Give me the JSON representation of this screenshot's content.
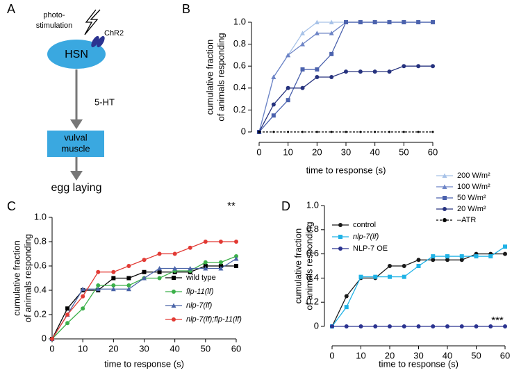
{
  "panels": [
    "A",
    "B",
    "C",
    "D"
  ],
  "diagram": {
    "stimulus": [
      "photo-",
      "stimulation"
    ],
    "channel": "ChR2",
    "neuron": "HSN",
    "transmitter": "5-HT",
    "target": [
      "vulval",
      "muscle"
    ],
    "output": "egg laying"
  },
  "chart_data": [
    {
      "type": "line",
      "xlabel": "time to response (s)",
      "ylabel": [
        "cumulative fraction",
        "of animals responding"
      ],
      "x": [
        0,
        5,
        10,
        15,
        20,
        25,
        30,
        35,
        40,
        45,
        50,
        55,
        60
      ],
      "xlim": [
        0,
        60
      ],
      "xticks": [
        0,
        10,
        20,
        30,
        40,
        50,
        60
      ],
      "ylim": [
        0,
        1
      ],
      "yticks": [
        0,
        0.2,
        0.4,
        0.6,
        0.8,
        {
          "value": 1,
          "label": "1.0"
        }
      ],
      "series": [
        {
          "name": "200 W/m²",
          "color": "#a7c2e8",
          "marker": "triangle",
          "values": [
            0,
            0.5,
            0.7,
            0.9,
            1,
            1,
            1,
            1,
            1,
            1,
            1,
            1,
            1
          ]
        },
        {
          "name": "100 W/m²",
          "color": "#6d84c6",
          "marker": "triangle",
          "values": [
            0,
            0.5,
            0.7,
            0.8,
            0.9,
            0.9,
            1,
            1,
            1,
            1,
            1,
            1,
            1
          ]
        },
        {
          "name": "50 W/m²",
          "color": "#4b62ad",
          "marker": "square",
          "values": [
            0,
            0.15,
            0.29,
            0.57,
            0.57,
            0.71,
            1,
            1,
            1,
            1,
            1,
            1,
            1
          ]
        },
        {
          "name": "20 W/m²",
          "color": "#26327e",
          "marker": "circle",
          "values": [
            0,
            0.25,
            0.4,
            0.4,
            0.5,
            0.5,
            0.55,
            0.55,
            0.55,
            0.55,
            0.6,
            0.6,
            0.6
          ]
        },
        {
          "name": "–ATR",
          "color": "#000000",
          "marker": "circle",
          "dash": true,
          "values": [
            0,
            0,
            0,
            0,
            0,
            0,
            0,
            0,
            0,
            0,
            0,
            0,
            0
          ]
        }
      ]
    },
    {
      "type": "line",
      "xlabel": "time to response (s)",
      "ylabel": [
        "cumulative fraction",
        "of animals responding"
      ],
      "annotation": "**",
      "x": [
        0,
        5,
        10,
        15,
        20,
        25,
        30,
        35,
        40,
        45,
        50,
        55,
        60
      ],
      "xlim": [
        0,
        60
      ],
      "xticks": [
        0,
        10,
        20,
        30,
        40,
        50,
        60
      ],
      "ylim": [
        0,
        1
      ],
      "yticks": [
        0,
        0.2,
        0.4,
        0.6,
        0.8,
        {
          "value": 1,
          "label": "1.0"
        }
      ],
      "series": [
        {
          "name": "wild type",
          "color": "#000000",
          "marker": "square",
          "values": [
            0,
            0.25,
            0.4,
            0.4,
            0.5,
            0.5,
            0.55,
            0.55,
            0.55,
            0.55,
            0.6,
            0.6,
            0.6
          ]
        },
        {
          "name": "flp-11(lf)",
          "color": "#3cb04a",
          "marker": "circle",
          "italic": true,
          "values": [
            0,
            0.13,
            0.25,
            0.44,
            0.44,
            0.44,
            0.5,
            0.5,
            0.56,
            0.56,
            0.63,
            0.63,
            0.68
          ]
        },
        {
          "name": "nlp-7(lf)",
          "color": "#4a64a8",
          "marker": "triangle",
          "italic": true,
          "values": [
            0,
            0.2,
            0.41,
            0.41,
            0.41,
            0.41,
            0.5,
            0.58,
            0.58,
            0.58,
            0.58,
            0.58,
            0.66
          ]
        },
        {
          "name": "nlp-7(lf);flp-11(lf)",
          "color": "#e23a34",
          "marker": "circle",
          "italic": true,
          "values": [
            0,
            0.2,
            0.35,
            0.55,
            0.55,
            0.6,
            0.65,
            0.7,
            0.7,
            0.75,
            0.8,
            0.8,
            0.8
          ]
        }
      ]
    },
    {
      "type": "line",
      "xlabel": "time to response (s)",
      "ylabel": [
        "cumulative fraction",
        "of animals responding"
      ],
      "annotation": "***",
      "x": [
        0,
        5,
        10,
        15,
        20,
        25,
        30,
        35,
        40,
        45,
        50,
        55,
        60
      ],
      "xlim": [
        0,
        60
      ],
      "xticks": [
        0,
        10,
        20,
        30,
        40,
        50,
        60
      ],
      "ylim": [
        0,
        1
      ],
      "yticks": [
        0,
        0.2,
        0.4,
        0.6,
        0.8,
        {
          "value": 1,
          "label": "1.0"
        }
      ],
      "series": [
        {
          "name": "control",
          "color": "#1a1a1a",
          "marker": "circle",
          "values": [
            0,
            0.25,
            0.4,
            0.4,
            0.5,
            0.5,
            0.55,
            0.55,
            0.55,
            0.55,
            0.6,
            0.6,
            0.6
          ]
        },
        {
          "name": "nlp-7(lf)",
          "color": "#20b2e6",
          "marker": "square",
          "italic": true,
          "values": [
            0,
            0.16,
            0.41,
            0.41,
            0.41,
            0.41,
            0.5,
            0.58,
            0.58,
            0.58,
            0.58,
            0.58,
            0.66
          ]
        },
        {
          "name": "NLP-7 OE",
          "color": "#2b3390",
          "marker": "circle",
          "values": [
            0,
            0,
            0,
            0,
            0,
            0,
            0,
            0,
            0,
            0,
            0,
            0,
            0
          ]
        }
      ]
    }
  ]
}
